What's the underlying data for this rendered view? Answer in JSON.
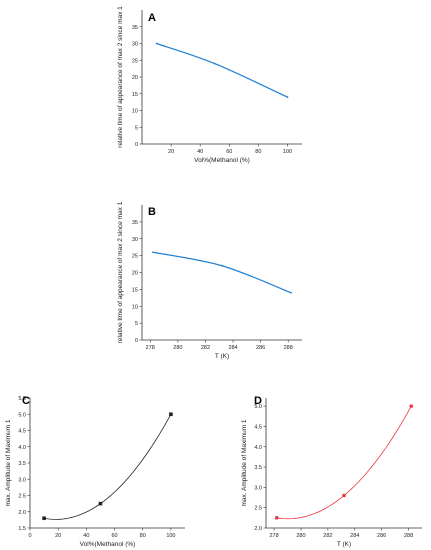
{
  "chart_data": [
    {
      "type": "line",
      "panel_label": "A",
      "x": [
        10,
        50,
        100
      ],
      "y": [
        30,
        24,
        14
      ],
      "xlabel": "Vol%(Methanol (%)",
      "ylabel": "relative time of appearance of max 2 since max 1",
      "xlim": [
        0,
        110
      ],
      "ylim": [
        0,
        40
      ],
      "xticks": [
        "20",
        "40",
        "60",
        "80",
        "100"
      ],
      "yticks": [
        "0",
        "5",
        "10",
        "15",
        "20",
        "25",
        "30",
        "35"
      ],
      "color": "#1f7fd4"
    },
    {
      "type": "line",
      "panel_label": "B",
      "x": [
        278.2,
        283.2,
        288.2
      ],
      "y": [
        26,
        22,
        14
      ],
      "xlabel": "T (K)",
      "ylabel": "relative time of appearance of max 2 since max 1",
      "xlim": [
        277.4,
        289
      ],
      "ylim": [
        0,
        40
      ],
      "xticks": [
        "278",
        "280",
        "282",
        "284",
        "286",
        "288"
      ],
      "yticks": [
        "0",
        "5",
        "10",
        "15",
        "20",
        "25",
        "30",
        "35"
      ],
      "color": "#1f7fd4"
    },
    {
      "type": "scatter",
      "panel_label": "C",
      "x": [
        10,
        50,
        100
      ],
      "y": [
        1.8,
        2.25,
        5.0
      ],
      "xlabel": "Vol%(Methanol (%)",
      "ylabel": "max. Amplitude of Maximum 1",
      "xlim": [
        0,
        110
      ],
      "ylim": [
        1.5,
        5.5
      ],
      "xticks": [
        "0",
        "20",
        "40",
        "60",
        "80",
        "100"
      ],
      "yticks": [
        "1.5",
        "2.0",
        "2.5",
        "3.0",
        "3.5",
        "4.0",
        "4.5",
        "5.0",
        "5.5"
      ],
      "color": "#222222",
      "fit": "quadratic"
    },
    {
      "type": "scatter",
      "panel_label": "D",
      "x": [
        278.2,
        283.2,
        288.2
      ],
      "y": [
        2.25,
        2.8,
        5.0
      ],
      "xlabel": "T (K)",
      "ylabel": "max. Amplitude of Maximum 1",
      "xlim": [
        277.4,
        289
      ],
      "ylim": [
        2.0,
        5.2
      ],
      "xticks": [
        "278",
        "280",
        "282",
        "284",
        "286",
        "288"
      ],
      "yticks": [
        "2.0",
        "2.5",
        "3.0",
        "3.5",
        "4.0",
        "4.5",
        "5.0"
      ],
      "color": "#e8383d",
      "fit": "quadratic"
    }
  ]
}
